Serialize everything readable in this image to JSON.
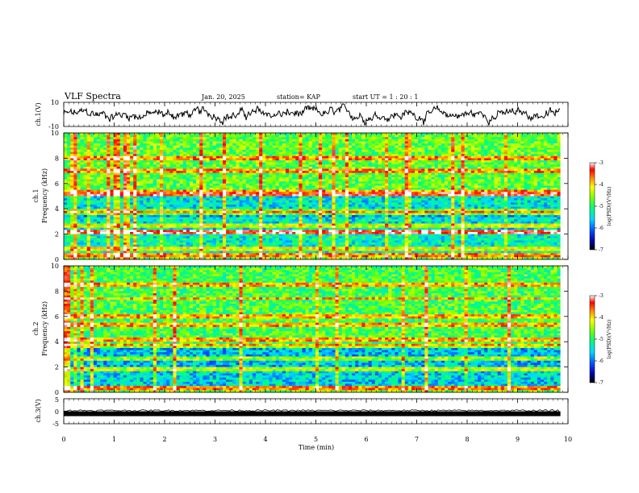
{
  "header": {
    "title": "VLF Spectra",
    "date": "Jan. 20, 2025",
    "station": "station= KAP",
    "start": "start  UT =   1 : 20 : 1"
  },
  "colors": {
    "waveform": "#000000",
    "axis": "#000000",
    "background": "#ffffff",
    "colormap": [
      "#000000",
      "#0000aa",
      "#0050ff",
      "#00d8ff",
      "#00ff80",
      "#7cff00",
      "#ffff00",
      "#ff9000",
      "#ff0000",
      "#ffffff"
    ]
  },
  "chart_data": [
    {
      "type": "line",
      "panel": "ch1-waveform",
      "ylabel": "ch.1(V)",
      "ylim": [
        -10,
        10
      ],
      "yticks": [
        "10",
        "-10"
      ],
      "xlim": [
        0,
        10
      ],
      "x_end": 9.85,
      "note_values": "dense waveform fluctuating roughly between -8 and +8 V"
    },
    {
      "type": "heatmap",
      "panel": "ch1-spectrogram",
      "ylabel": "ch.1\nFrequency (kHz)",
      "ylabel_lines": [
        "ch.1",
        "Frequency (kHz)"
      ],
      "ylim": [
        0,
        10
      ],
      "yticks": [
        "0",
        "2",
        "4",
        "6",
        "8",
        "10"
      ],
      "xlim": [
        0,
        10
      ],
      "x_end": 9.85,
      "colorbar": {
        "label": "log(PSD)(V²/Hz)",
        "range": [
          -7,
          -3
        ],
        "ticks": [
          "-3",
          "-4",
          "-5",
          "-6",
          "-7"
        ]
      },
      "bands": [
        {
          "from": 0.0,
          "to": 0.5,
          "level": -4.8
        },
        {
          "from": 0.5,
          "to": 2.0,
          "level": -5.4
        },
        {
          "from": 2.0,
          "to": 2.3,
          "level": -4.3
        },
        {
          "from": 2.3,
          "to": 3.4,
          "level": -5.5
        },
        {
          "from": 3.4,
          "to": 4.0,
          "level": -5.8
        },
        {
          "from": 4.0,
          "to": 5.0,
          "level": -5.5
        },
        {
          "from": 5.0,
          "to": 5.4,
          "level": -4.5
        },
        {
          "from": 5.4,
          "to": 10.0,
          "level": -4.9
        }
      ],
      "lines_khz": [
        0.3,
        0.8,
        2.1,
        2.6,
        3.6,
        3.85,
        5.1,
        5.3,
        7.0,
        8.0
      ]
    },
    {
      "type": "heatmap",
      "panel": "ch2-spectrogram",
      "ylabel": "ch.2\nFrequency (kHz)",
      "ylabel_lines": [
        "ch.2",
        "Frequency (kHz)"
      ],
      "ylim": [
        0,
        10
      ],
      "yticks": [
        "0",
        "2",
        "4",
        "6",
        "8",
        "10"
      ],
      "xlim": [
        0,
        10
      ],
      "x_end": 9.85,
      "colorbar": {
        "label": "log(PSD)(V²/Hz)",
        "range": [
          -7,
          -3
        ],
        "ticks": [
          "-3",
          "-4",
          "-5",
          "-6",
          "-7"
        ]
      },
      "bands": [
        {
          "from": 0.0,
          "to": 0.5,
          "level": -4.8
        },
        {
          "from": 0.5,
          "to": 2.0,
          "level": -5.6
        },
        {
          "from": 2.0,
          "to": 3.6,
          "level": -5.7
        },
        {
          "from": 3.6,
          "to": 10.0,
          "level": -5.0
        }
      ],
      "lines_khz": [
        0.3,
        1.9,
        2.6,
        3.7,
        4.2,
        5.3,
        6.0,
        7.4,
        8.5
      ]
    },
    {
      "type": "line",
      "panel": "ch3-waveform",
      "ylabel": "ch.3(V)",
      "ylim": [
        -5,
        5
      ],
      "yticks": [
        "5",
        "0",
        "-5"
      ],
      "xlim": [
        0,
        10
      ],
      "x_end": 9.85,
      "xlabel": "Time (min)",
      "xticks": [
        "0",
        "1",
        "2",
        "3",
        "4",
        "5",
        "6",
        "7",
        "8",
        "9",
        "10"
      ],
      "note_values": "narrow band around -1 V"
    }
  ]
}
